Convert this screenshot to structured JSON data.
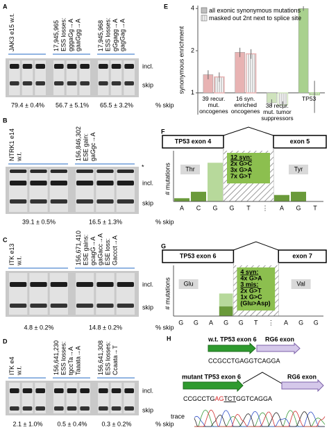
{
  "panels": {
    "a": {
      "label": "A",
      "lanes": [
        [
          "JAK3 e15 w.t."
        ],
        [
          "17,945,965",
          "ESS losses:",
          "gggaGg→A",
          "gaaGgg→A"
        ],
        [
          "17,945,968",
          "ESS losses:",
          "gGgagg→A",
          "gagGag→A"
        ]
      ],
      "incl": "incl.",
      "skip": "skip",
      "skips": [
        "79.4 ± 0.4%",
        "56.7 ± 5.1%",
        "65.5 ± 3.2%"
      ],
      "unit": "% skip"
    },
    "b": {
      "label": "B",
      "lanes": [
        [
          "NTRK1 e14",
          "w.t."
        ],
        [
          "156,846,302",
          "ESE gain:",
          "gaGgc→A"
        ]
      ],
      "marker": "*",
      "incl": "incl.",
      "skip": "skip",
      "skips": [
        "39.1 ± 0.5%",
        "16.5 ± 1.3%"
      ],
      "unit": "% skip"
    },
    "c": {
      "label": "C",
      "lanes": [
        [
          "ITK e13",
          "w.t."
        ],
        [
          "156,671,410",
          "ESE gains:",
          "gcagG→A",
          "gaGacc→A",
          "ESE loss:",
          "Gaccct→A"
        ]
      ],
      "incl": "incl.",
      "skip": "skip",
      "skips": [
        "4.8 ± 0.2%",
        "14.8 ± 0.2%"
      ],
      "unit": "% skip"
    },
    "d": {
      "label": "D",
      "lanes": [
        [
          "ITK e4",
          "w.t."
        ],
        [
          "156,641,230",
          "ESS losses:",
          "tgccTa→A",
          "Taaata→A"
        ],
        [
          "156,641,308",
          "ESS losses:",
          "Ccaata→T"
        ]
      ],
      "incl": "incl.",
      "skip": "skip",
      "skips": [
        "2.1 ± 1.0%",
        "0.5 ± 0.4%",
        "0.3 ± 0.2%"
      ],
      "unit": "% skip"
    }
  },
  "chart_data": [
    {
      "type": "bar",
      "label": "E",
      "categories": [
        "39 recur. mut. oncogenes",
        "16 syn. enriched oncogenes",
        "38 recur. mut. tumor suppressors",
        "TP53"
      ],
      "category_colors": [
        "#e8b3b3",
        "#e8b3b3",
        "#cfe3bd",
        "#a9d18e"
      ],
      "series": [
        {
          "name": "all exonic synonymous mutations",
          "color": "#bfbfbf",
          "pattern": "solid",
          "values": [
            1.35,
            1.95,
            0.85,
            4.0
          ],
          "errors": [
            0.1,
            0.15,
            0.05,
            0.15
          ]
        },
        {
          "name": "masked out 2nt next to splice site",
          "color": "#ffffff",
          "pattern": "hatched",
          "values": [
            1.3,
            1.9,
            0.82,
            0.97
          ],
          "errors": [
            0.1,
            0.15,
            0.05,
            0.25
          ]
        }
      ],
      "ylabel": "synonymous enrichment",
      "ylim": [
        0.7,
        4.2
      ],
      "yticks": [
        1,
        2,
        4
      ],
      "log": true,
      "legend": "top-left"
    },
    {
      "type": "bar",
      "stacked": true,
      "label": "F",
      "ylabel": "# mutations",
      "exon_left": "TP53 exon 4",
      "exon_right": "exon 5",
      "aa_left": "Thr",
      "aa_right": "Tyr",
      "box": [
        "12 syn:",
        "2x G>C",
        "3x G>A",
        "7x G>T"
      ],
      "categories": [
        "A",
        "C",
        "G",
        "G",
        "T",
        "⋮",
        "A",
        "G",
        "T"
      ],
      "series": [
        {
          "color": "#6a9a3a",
          "values": [
            1,
            3,
            0,
            0,
            0,
            null,
            2,
            3,
            0
          ]
        },
        {
          "color": "#b7d99b",
          "values": [
            0,
            0,
            12,
            0,
            0,
            null,
            0,
            0,
            0
          ]
        }
      ],
      "ylim": [
        0,
        14
      ]
    },
    {
      "type": "bar",
      "stacked": true,
      "label": "G",
      "ylabel": "# mutations",
      "exon_left": "TP53 exon 6",
      "exon_right": "exon 7",
      "aa_left": "Glu",
      "aa_right": "Val",
      "box": [
        "4 syn:",
        "4x G>A",
        "3 mis:",
        "2x G>T",
        "1x G>C",
        "(Glu>Asp)"
      ],
      "categories": [
        "G",
        "G",
        "A",
        "G",
        "G",
        "T",
        "⋮",
        "A",
        "G",
        "G"
      ],
      "series": [
        {
          "color": "#6a9a3a",
          "values": [
            0,
            0,
            0,
            3,
            0,
            0,
            null,
            0,
            0,
            0
          ]
        },
        {
          "color": "#b7d99b",
          "values": [
            0,
            0,
            0,
            4,
            0,
            0,
            null,
            0,
            0,
            0
          ]
        }
      ],
      "ylim": [
        0,
        14
      ]
    }
  ],
  "h": {
    "label": "H",
    "wt_label": "w.t. TP53 exon 6",
    "rg6": "RG6 exon",
    "wt_seq": "CCGCCTGAGGTCAGGA",
    "mut_label": "mutant TP53 exon 6",
    "rg6_mut": "RG6 exon",
    "mut_seq": [
      "CCGCCTG",
      "AG",
      "TCT",
      "GGTCAGGA"
    ],
    "trace": "trace"
  }
}
